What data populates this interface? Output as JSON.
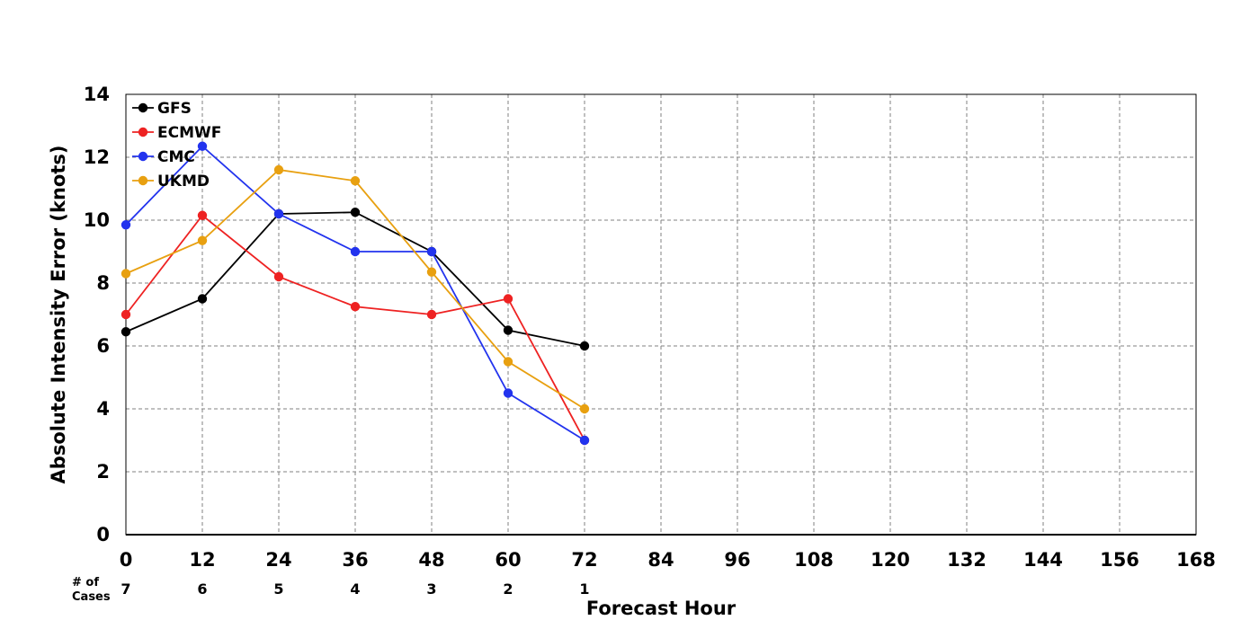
{
  "chart_data": {
    "type": "line",
    "title": "",
    "xlabel": "Forecast Hour",
    "ylabel": "Absolute Intensity Error (knots)",
    "xlim": [
      0,
      168
    ],
    "ylim": [
      0,
      14
    ],
    "x_ticks": [
      0,
      12,
      24,
      36,
      48,
      60,
      72,
      84,
      96,
      108,
      120,
      132,
      144,
      156,
      168
    ],
    "y_ticks": [
      0,
      2,
      4,
      6,
      8,
      10,
      12,
      14
    ],
    "grid": true,
    "legend_position": "top-left",
    "x": [
      0,
      12,
      24,
      36,
      48,
      60,
      72
    ],
    "series": [
      {
        "name": "GFS",
        "color": "#000000",
        "values": [
          6.45,
          7.5,
          10.2,
          10.25,
          9.0,
          6.5,
          6.0
        ]
      },
      {
        "name": "ECMWF",
        "color": "#ee2222",
        "values": [
          7.0,
          10.15,
          8.2,
          7.25,
          7.0,
          7.5,
          3.0
        ]
      },
      {
        "name": "CMC",
        "color": "#2233ee",
        "values": [
          9.85,
          12.35,
          10.2,
          9.0,
          9.0,
          4.5,
          3.0
        ]
      },
      {
        "name": "UKMD",
        "color": "#e8a010",
        "values": [
          8.3,
          9.35,
          11.6,
          11.25,
          8.35,
          5.5,
          4.0
        ]
      }
    ],
    "cases": {
      "label_line1": "# of",
      "label_line2": "Cases",
      "x": [
        0,
        12,
        24,
        36,
        48,
        60,
        72
      ],
      "counts": [
        "7",
        "6",
        "5",
        "4",
        "3",
        "2",
        "1"
      ]
    }
  }
}
